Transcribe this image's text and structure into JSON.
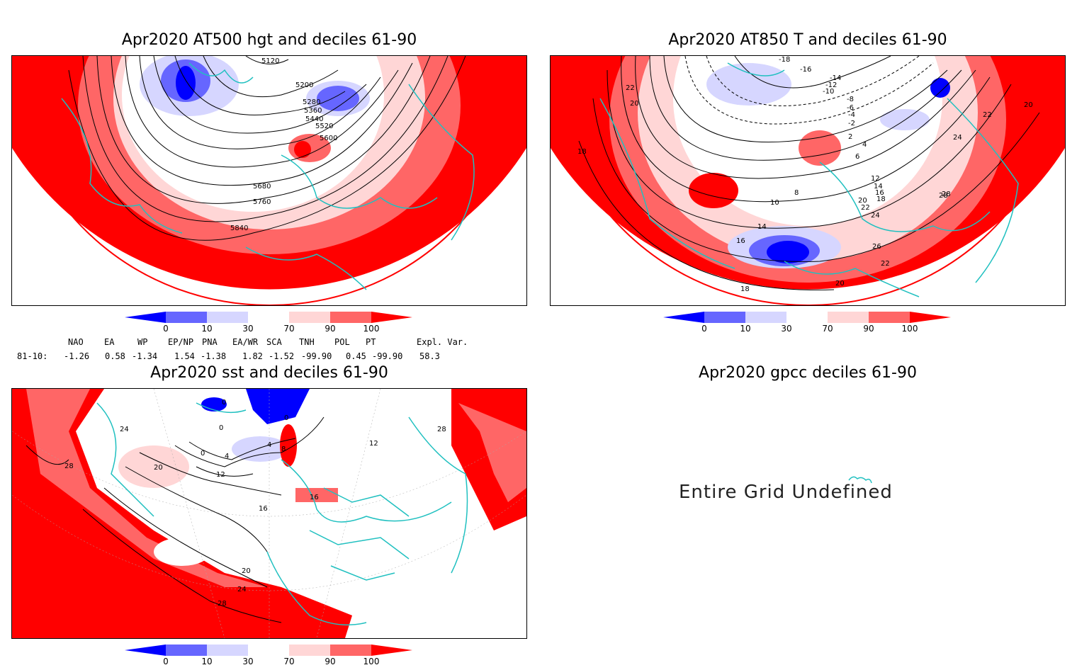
{
  "panels": {
    "z500": {
      "title": "Apr2020 AT500 hgt and deciles 61-90",
      "contour_labels": [
        "5120",
        "5200",
        "5280",
        "5360",
        "5440",
        "5520",
        "5600",
        "5680",
        "5760",
        "5840"
      ]
    },
    "t850": {
      "title": "Apr2020 AT850 T and deciles 61-90",
      "contour_labels": [
        "-18",
        "-16",
        "-14",
        "-12",
        "-10",
        "-8",
        "-6",
        "-4",
        "-2",
        "2",
        "4",
        "6",
        "8",
        "10",
        "12",
        "14",
        "16",
        "18",
        "20",
        "22",
        "24",
        "26",
        "28",
        "22",
        "20",
        "18",
        "20",
        "22",
        "24",
        "28",
        "18",
        "20",
        "22",
        "16",
        "14"
      ]
    },
    "sst": {
      "title": "Apr2020 sst and deciles 61-90",
      "contour_labels": [
        "24",
        "28",
        "20",
        "0",
        "0",
        "4",
        "8",
        "4",
        "12",
        "16",
        "16",
        "20",
        "24",
        "28",
        "0",
        "0",
        "12",
        "28"
      ]
    },
    "gpcc": {
      "title": "Apr2020 gpcc deciles 61-90",
      "message": "Entire Grid Undefined"
    }
  },
  "colorbar": {
    "ticks": [
      "0",
      "10",
      "30",
      "70",
      "90",
      "100"
    ],
    "colors": [
      "#0000ff",
      "#6666ff",
      "#d6d6ff",
      "#ffffff",
      "#ffd6d6",
      "#ff6666",
      "#ff0000"
    ]
  },
  "indices": {
    "headers": [
      "NAO",
      "EA",
      "WP",
      "EP/NP",
      "PNA",
      "EA/WR",
      "SCA",
      "TNH",
      "POL",
      "PT",
      "Expl. Var."
    ],
    "row_label": "81-10:",
    "values": [
      "-1.26",
      "0.58",
      "-1.34",
      "1.54",
      "-1.38",
      "1.82",
      "-1.52",
      "-99.90",
      "0.45",
      "-99.90",
      "58.3"
    ]
  },
  "colors": {
    "coast": "#20c0c0",
    "contour": "#000000"
  }
}
